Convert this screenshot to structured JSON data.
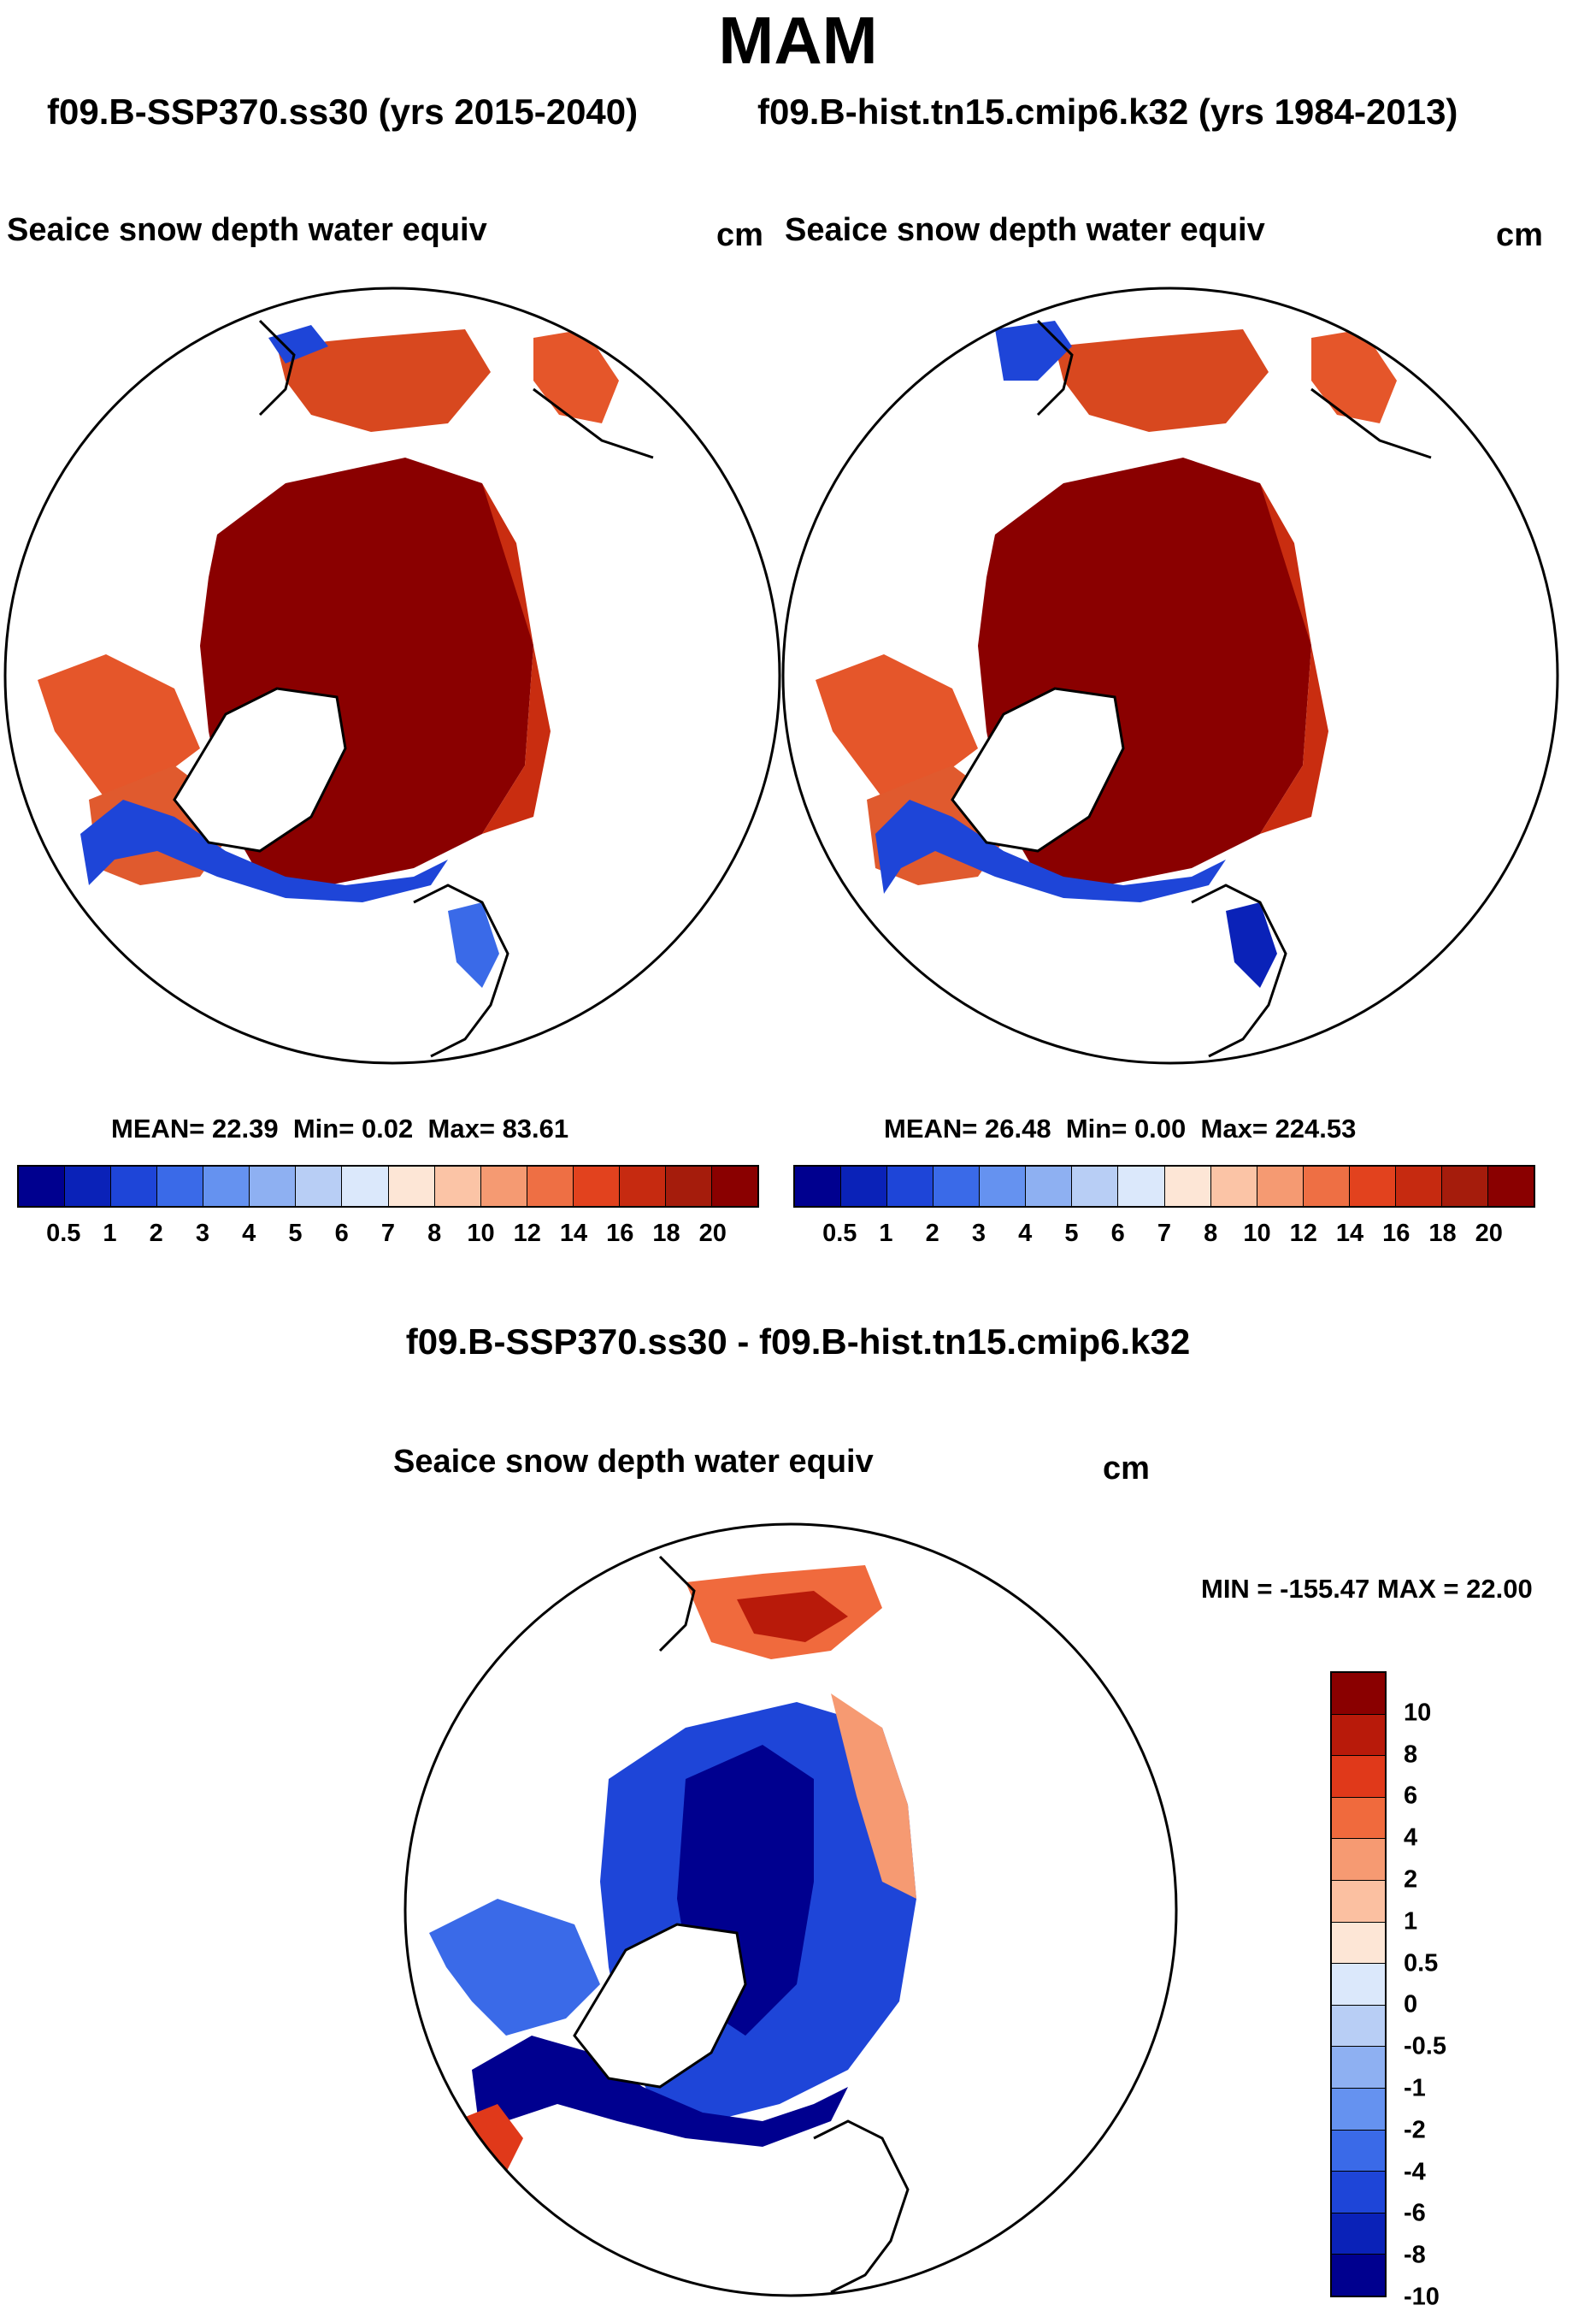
{
  "title": "MAM",
  "cases": {
    "left": "f09.B-SSP370.ss30 (yrs 2015-2040)",
    "right": "f09.B-hist.tn15.cmip6.k32 (yrs 1984-2013)"
  },
  "panels": [
    {
      "variable": "Seaice snow depth water equiv",
      "units": "cm",
      "mean": "22.39",
      "min": "0.02",
      "max": "83.61"
    },
    {
      "variable": "Seaice snow depth water equiv",
      "units": "cm",
      "mean": "26.48",
      "min": "0.00",
      "max": "224.53"
    }
  ],
  "stat_labels": {
    "mean": "MEAN=",
    "min": "Min=",
    "max": "Max="
  },
  "difference": {
    "title": "f09.B-SSP370.ss30 - f09.B-hist.tn15.cmip6.k32",
    "variable": "Seaice snow depth water equiv",
    "units": "cm",
    "min_max_text": "MIN = -155.47 MAX =  22.00"
  },
  "colorbars": {
    "abs_levels": [
      "0.5",
      "1",
      "2",
      "3",
      "4",
      "5",
      "6",
      "7",
      "8",
      "10",
      "12",
      "14",
      "16",
      "18",
      "20"
    ],
    "abs_colors": [
      "#00008f",
      "#0a22b8",
      "#1e45d8",
      "#3a6ae8",
      "#6592f0",
      "#8eb0f2",
      "#b8cef5",
      "#dbe8fb",
      "#fde6d6",
      "#fbc4a6",
      "#f59a72",
      "#ee6f44",
      "#e2421e",
      "#c62a10",
      "#a51c0c",
      "#8a0000"
    ],
    "diff_levels": [
      "10",
      "8",
      "6",
      "4",
      "2",
      "1",
      "0.5",
      "0",
      "-0.5",
      "-1",
      "-2",
      "-4",
      "-6",
      "-8",
      "-10"
    ],
    "diff_colors": [
      "#8a0000",
      "#b81a0a",
      "#e0391a",
      "#f06a3d",
      "#f69a72",
      "#fbc0a1",
      "#fde6d6",
      "#dbe8fb",
      "#b8cef5",
      "#8eb0f2",
      "#6592f0",
      "#3a6ae8",
      "#1e45d8",
      "#0a22b8",
      "#00008f"
    ]
  },
  "chart_data": {
    "type": "heatmap",
    "title": "MAM",
    "projection": "north polar stereographic",
    "panels": [
      {
        "case": "f09.B-SSP370.ss30 (yrs 2015-2040)",
        "variable": "Seaice snow depth water equiv",
        "units": "cm",
        "mean": 22.39,
        "min": 0.02,
        "max": 83.61
      },
      {
        "case": "f09.B-hist.tn15.cmip6.k32 (yrs 1984-2013)",
        "variable": "Seaice snow depth water equiv",
        "units": "cm",
        "mean": 26.48,
        "min": 0.0,
        "max": 224.53
      },
      {
        "case": "f09.B-SSP370.ss30 - f09.B-hist.tn15.cmip6.k32",
        "variable": "Seaice snow depth water equiv",
        "units": "cm",
        "min": -155.47,
        "max": 22.0
      }
    ],
    "contour_levels": [
      0.5,
      1,
      2,
      3,
      4,
      5,
      6,
      7,
      8,
      10,
      12,
      14,
      16,
      18,
      20
    ],
    "difference_levels": [
      -10,
      -8,
      -6,
      -4,
      -2,
      -1,
      -0.5,
      0,
      0.5,
      1,
      2,
      4,
      6,
      8,
      10
    ]
  }
}
